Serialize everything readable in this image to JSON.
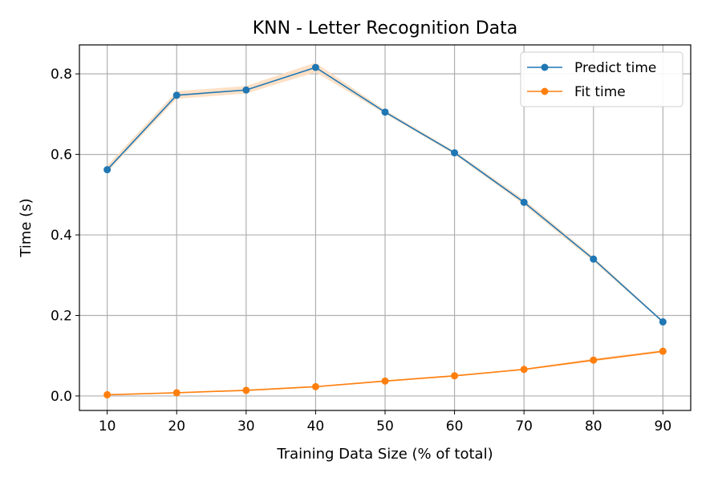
{
  "chart_data": {
    "type": "line",
    "title": "KNN - Letter Recognition Data",
    "xlabel": "Training Data Size (% of total)",
    "ylabel": "Time (s)",
    "x": [
      10,
      20,
      30,
      40,
      50,
      60,
      70,
      80,
      90
    ],
    "xlim": [
      6,
      94
    ],
    "ylim": [
      -0.036,
      0.872
    ],
    "xticks": [
      10,
      20,
      30,
      40,
      50,
      60,
      70,
      80,
      90
    ],
    "yticks": [
      0.0,
      0.2,
      0.4,
      0.6,
      0.8
    ],
    "ytick_labels": [
      "0.0",
      "0.2",
      "0.4",
      "0.6",
      "0.8"
    ],
    "grid": true,
    "legend": "top-right",
    "series": [
      {
        "name": "Predict time",
        "color": "#1f77b4",
        "values": [
          0.562,
          0.747,
          0.76,
          0.816,
          0.705,
          0.604,
          0.481,
          0.34,
          0.184
        ],
        "band_lower": [
          0.556,
          0.738,
          0.751,
          0.804,
          0.701,
          0.6,
          0.475,
          0.334,
          0.182
        ],
        "band_upper": [
          0.572,
          0.757,
          0.77,
          0.828,
          0.71,
          0.608,
          0.488,
          0.345,
          0.187
        ]
      },
      {
        "name": "Fit time",
        "color": "#ff7f0e",
        "values": [
          0.003,
          0.008,
          0.014,
          0.023,
          0.037,
          0.05,
          0.066,
          0.089,
          0.111
        ],
        "band_lower": [
          0.002,
          0.007,
          0.012,
          0.021,
          0.035,
          0.048,
          0.064,
          0.086,
          0.108
        ],
        "band_upper": [
          0.004,
          0.009,
          0.016,
          0.025,
          0.039,
          0.052,
          0.068,
          0.093,
          0.114
        ]
      }
    ]
  }
}
